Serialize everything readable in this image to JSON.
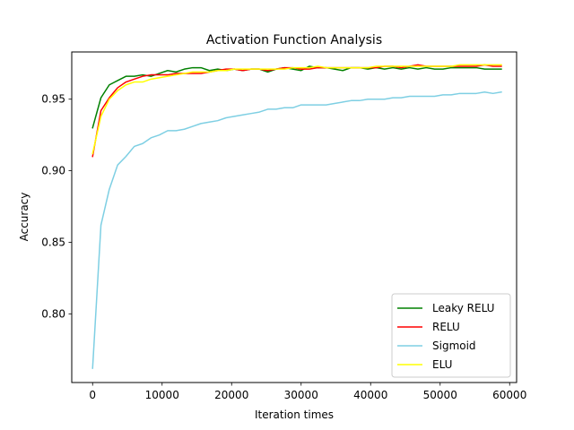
{
  "chart_data": {
    "type": "line",
    "title": "Activation Function Analysis",
    "xlabel": "Iteration times",
    "ylabel": "Accuracy",
    "xlim": [
      -3000,
      61000
    ],
    "ylim": [
      0.752,
      0.983
    ],
    "xticks": [
      0,
      10000,
      20000,
      30000,
      40000,
      50000,
      60000
    ],
    "xtick_labels": [
      "0",
      "10000",
      "20000",
      "30000",
      "40000",
      "50000",
      "60000"
    ],
    "yticks": [
      0.8,
      0.85,
      0.9,
      0.95
    ],
    "ytick_labels": [
      "0.80",
      "0.85",
      "0.90",
      "0.95"
    ],
    "grid": false,
    "legend_position": "lower-right",
    "x": [
      0,
      1200,
      2400,
      3600,
      4800,
      6000,
      7200,
      8400,
      9600,
      10800,
      12000,
      13200,
      14400,
      15600,
      16800,
      18000,
      19200,
      20400,
      21600,
      22800,
      24000,
      25200,
      26400,
      27600,
      28800,
      30000,
      31200,
      32400,
      33600,
      34800,
      36000,
      37200,
      38400,
      39600,
      40800,
      42000,
      43200,
      44400,
      45600,
      46800,
      48000,
      49200,
      50400,
      51600,
      52800,
      54000,
      55200,
      56400,
      57600,
      58800
    ],
    "series": [
      {
        "name": "Leaky RELU",
        "color": "#008000",
        "values": [
          0.93,
          0.951,
          0.96,
          0.963,
          0.966,
          0.966,
          0.967,
          0.966,
          0.968,
          0.97,
          0.969,
          0.971,
          0.972,
          0.972,
          0.97,
          0.971,
          0.97,
          0.971,
          0.97,
          0.971,
          0.971,
          0.969,
          0.971,
          0.972,
          0.971,
          0.97,
          0.973,
          0.972,
          0.972,
          0.971,
          0.97,
          0.972,
          0.972,
          0.971,
          0.972,
          0.971,
          0.972,
          0.971,
          0.972,
          0.971,
          0.972,
          0.971,
          0.971,
          0.972,
          0.972,
          0.972,
          0.972,
          0.971,
          0.971,
          0.971
        ]
      },
      {
        "name": "RELU",
        "color": "#ff0000",
        "values": [
          0.91,
          0.942,
          0.951,
          0.958,
          0.962,
          0.964,
          0.966,
          0.967,
          0.967,
          0.967,
          0.968,
          0.968,
          0.968,
          0.968,
          0.969,
          0.97,
          0.971,
          0.971,
          0.97,
          0.971,
          0.971,
          0.97,
          0.971,
          0.972,
          0.972,
          0.971,
          0.971,
          0.972,
          0.972,
          0.972,
          0.972,
          0.972,
          0.972,
          0.972,
          0.972,
          0.973,
          0.973,
          0.972,
          0.973,
          0.974,
          0.973,
          0.973,
          0.973,
          0.973,
          0.973,
          0.973,
          0.973,
          0.974,
          0.973,
          0.973
        ]
      },
      {
        "name": "Sigmoid",
        "color": "#7ecfe3",
        "values": [
          0.762,
          0.862,
          0.887,
          0.904,
          0.91,
          0.917,
          0.919,
          0.923,
          0.925,
          0.928,
          0.928,
          0.929,
          0.931,
          0.933,
          0.934,
          0.935,
          0.937,
          0.938,
          0.939,
          0.94,
          0.941,
          0.943,
          0.943,
          0.944,
          0.944,
          0.946,
          0.946,
          0.946,
          0.946,
          0.947,
          0.948,
          0.949,
          0.949,
          0.95,
          0.95,
          0.95,
          0.951,
          0.951,
          0.952,
          0.952,
          0.952,
          0.952,
          0.953,
          0.953,
          0.954,
          0.954,
          0.954,
          0.955,
          0.954,
          0.955
        ]
      },
      {
        "name": "ELU",
        "color": "#ffff00",
        "values": [
          0.912,
          0.938,
          0.95,
          0.956,
          0.96,
          0.962,
          0.962,
          0.964,
          0.965,
          0.966,
          0.967,
          0.968,
          0.969,
          0.969,
          0.969,
          0.97,
          0.97,
          0.971,
          0.971,
          0.971,
          0.971,
          0.971,
          0.971,
          0.971,
          0.972,
          0.972,
          0.972,
          0.973,
          0.972,
          0.972,
          0.972,
          0.972,
          0.972,
          0.972,
          0.973,
          0.973,
          0.973,
          0.973,
          0.973,
          0.973,
          0.973,
          0.973,
          0.973,
          0.973,
          0.974,
          0.974,
          0.974,
          0.974,
          0.974,
          0.974
        ]
      }
    ]
  }
}
